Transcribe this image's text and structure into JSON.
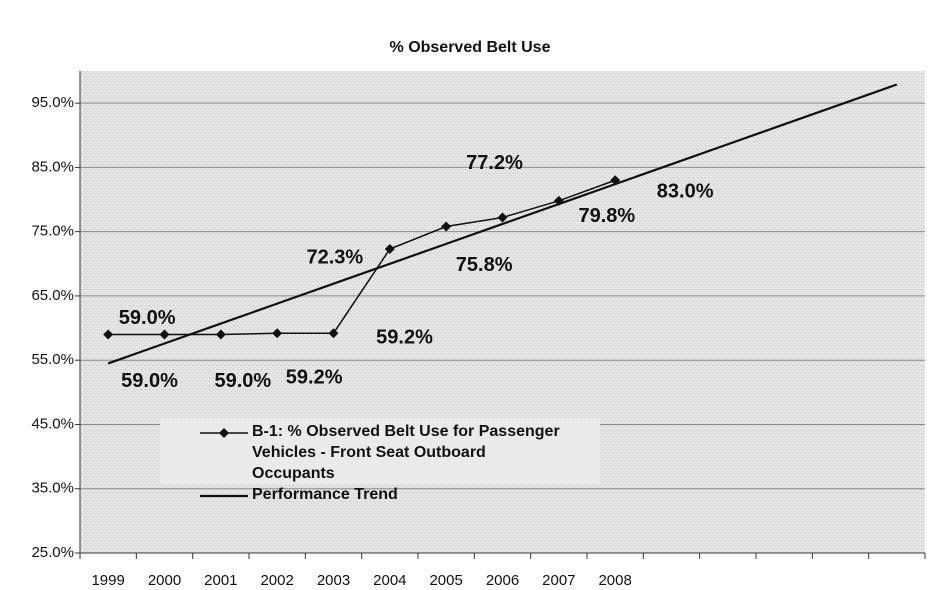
{
  "chart_data": {
    "type": "line",
    "title": "% Observed Belt Use",
    "categories": [
      "1999",
      "2000",
      "2001",
      "2002",
      "2003",
      "2004",
      "2005",
      "2006",
      "2007",
      "2008",
      null,
      null,
      null,
      null,
      null
    ],
    "series": [
      {
        "name": "B-1: % Observed Belt Use for Passenger Vehicles - Front Seat Outboard Occupants",
        "color": "#111111",
        "marker": "diamond",
        "values": [
          59.0,
          59.0,
          59.0,
          59.2,
          59.2,
          72.3,
          75.8,
          77.2,
          79.8,
          83.0,
          null,
          null,
          null,
          null,
          null
        ],
        "value_labels": [
          "59.0%",
          "59.0%",
          "59.0%",
          "59.2%",
          "59.2%",
          "72.3%",
          "75.8%",
          "77.2%",
          "79.8%",
          "83.0%",
          null,
          null,
          null,
          null,
          null
        ]
      },
      {
        "name": "Performance Trend",
        "color": "#111111",
        "values": [
          54.5,
          57.6,
          60.7,
          63.8,
          66.9,
          70.0,
          73.1,
          76.2,
          79.3,
          82.4,
          85.5,
          88.6,
          91.7,
          94.8,
          97.9
        ]
      }
    ],
    "ylim": [
      25,
      100
    ],
    "yticks": [
      {
        "value": 25,
        "label": "25.0%"
      },
      {
        "value": 35,
        "label": "35.0%"
      },
      {
        "value": 45,
        "label": "45.0%"
      },
      {
        "value": 55,
        "label": "55.0%"
      },
      {
        "value": 65,
        "label": "65.0%"
      },
      {
        "value": 75,
        "label": "75.0%"
      },
      {
        "value": 85,
        "label": "85.0%"
      },
      {
        "value": 95,
        "label": "95.0%"
      }
    ],
    "grid": true
  }
}
